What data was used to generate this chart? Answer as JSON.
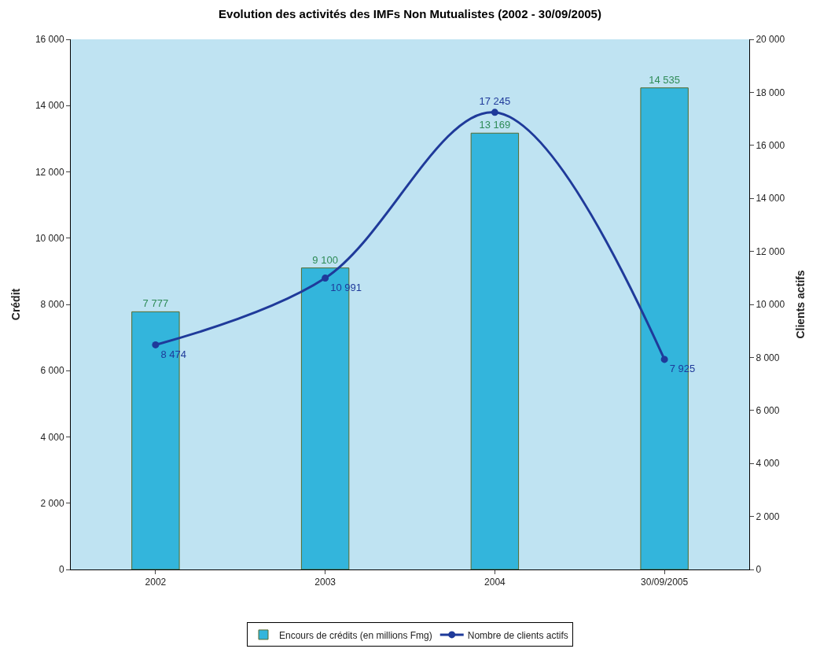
{
  "chart_data": {
    "type": "bar",
    "title": "Evolution des activités des IMFs Non Mutualistes (2002 - 30/09/2005)",
    "categories": [
      "2002",
      "2003",
      "2004",
      "30/09/2005"
    ],
    "series": [
      {
        "name": "Encours de crédits (en millions Fmg)",
        "color": "#33b5dc",
        "values": [
          7777,
          9100,
          13169,
          14535
        ]
      },
      {
        "name": "Nombre de clients actifs",
        "type": "line",
        "axis": "y2",
        "color": "#1f3a9a",
        "values": [
          8474,
          10991,
          17245,
          7925
        ]
      }
    ],
    "ylabel": "Crédit",
    "y2label": "Clients actifs",
    "ylim": [
      0,
      16000
    ],
    "yticks": [
      {
        "value": 0,
        "label": "0"
      },
      {
        "value": 2000,
        "label": "2 000"
      },
      {
        "value": 4000,
        "label": "4 000"
      },
      {
        "value": 6000,
        "label": "6 000"
      },
      {
        "value": 8000,
        "label": "8 000"
      },
      {
        "value": 10000,
        "label": "10 000"
      },
      {
        "value": 12000,
        "label": "12 000"
      },
      {
        "value": 14000,
        "label": "14 000"
      },
      {
        "value": 16000,
        "label": "16 000"
      }
    ],
    "y2lim": [
      0,
      20000
    ],
    "y2ticks": [
      {
        "value": 0,
        "label": "0"
      },
      {
        "value": 2000,
        "label": "2 000"
      },
      {
        "value": 4000,
        "label": "4 000"
      },
      {
        "value": 6000,
        "label": "6 000"
      },
      {
        "value": 8000,
        "label": "8 000"
      },
      {
        "value": 10000,
        "label": "10 000"
      },
      {
        "value": 12000,
        "label": "12 000"
      },
      {
        "value": 14000,
        "label": "14 000"
      },
      {
        "value": 16000,
        "label": "16 000"
      },
      {
        "value": 18000,
        "label": "18 000"
      },
      {
        "value": 20000,
        "label": "20 000"
      }
    ],
    "data_labels": true,
    "marker": "circle",
    "legend": "bottom",
    "grid": false
  }
}
